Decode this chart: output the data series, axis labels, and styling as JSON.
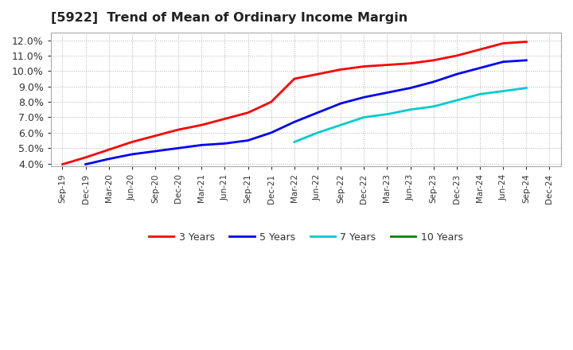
{
  "title": "[5922]  Trend of Mean of Ordinary Income Margin",
  "ylim": [
    0.038,
    0.125
  ],
  "yticks": [
    0.04,
    0.05,
    0.06,
    0.07,
    0.08,
    0.09,
    0.1,
    0.11,
    0.12
  ],
  "background_color": "#ffffff",
  "plot_bg_color": "#ffffff",
  "grid_color": "#aaaaaa",
  "xtick_labels": [
    "Sep-19",
    "Dec-19",
    "Mar-20",
    "Jun-20",
    "Sep-20",
    "Dec-20",
    "Mar-21",
    "Jun-21",
    "Sep-21",
    "Dec-21",
    "Mar-22",
    "Jun-22",
    "Sep-22",
    "Dec-22",
    "Mar-23",
    "Jun-23",
    "Sep-23",
    "Dec-23",
    "Mar-24",
    "Jun-24",
    "Sep-24",
    "Dec-24"
  ],
  "series": {
    "3 Years": {
      "color": "#ff0000",
      "x": [
        "Sep-19",
        "Dec-19",
        "Mar-20",
        "Jun-20",
        "Sep-20",
        "Dec-20",
        "Mar-21",
        "Jun-21",
        "Sep-21",
        "Dec-21",
        "Mar-22",
        "Jun-22",
        "Sep-22",
        "Dec-22",
        "Mar-23",
        "Jun-23",
        "Sep-23",
        "Dec-23",
        "Mar-24",
        "Jun-24",
        "Sep-24"
      ],
      "y": [
        0.0395,
        0.044,
        0.049,
        0.054,
        0.058,
        0.062,
        0.065,
        0.069,
        0.073,
        0.08,
        0.095,
        0.098,
        0.101,
        0.103,
        0.104,
        0.105,
        0.107,
        0.11,
        0.114,
        0.118,
        0.119
      ]
    },
    "5 Years": {
      "color": "#0000ff",
      "x": [
        "Dec-19",
        "Mar-20",
        "Jun-20",
        "Sep-20",
        "Dec-20",
        "Mar-21",
        "Jun-21",
        "Sep-21",
        "Dec-21",
        "Mar-22",
        "Jun-22",
        "Sep-22",
        "Dec-22",
        "Mar-23",
        "Jun-23",
        "Sep-23",
        "Dec-23",
        "Mar-24",
        "Jun-24",
        "Sep-24"
      ],
      "y": [
        0.0395,
        0.043,
        0.046,
        0.048,
        0.05,
        0.052,
        0.053,
        0.055,
        0.06,
        0.067,
        0.073,
        0.079,
        0.083,
        0.086,
        0.089,
        0.093,
        0.098,
        0.102,
        0.106,
        0.107
      ]
    },
    "7 Years": {
      "color": "#00cccc",
      "x": [
        "Mar-22",
        "Jun-22",
        "Sep-22",
        "Dec-22",
        "Mar-23",
        "Jun-23",
        "Sep-23",
        "Dec-23",
        "Mar-24",
        "Jun-24",
        "Sep-24"
      ],
      "y": [
        0.054,
        0.06,
        0.065,
        0.07,
        0.072,
        0.075,
        0.077,
        0.081,
        0.085,
        0.087,
        0.089
      ]
    },
    "10 Years": {
      "color": "#008000",
      "x": [],
      "y": []
    }
  },
  "legend_order": [
    "3 Years",
    "5 Years",
    "7 Years",
    "10 Years"
  ]
}
